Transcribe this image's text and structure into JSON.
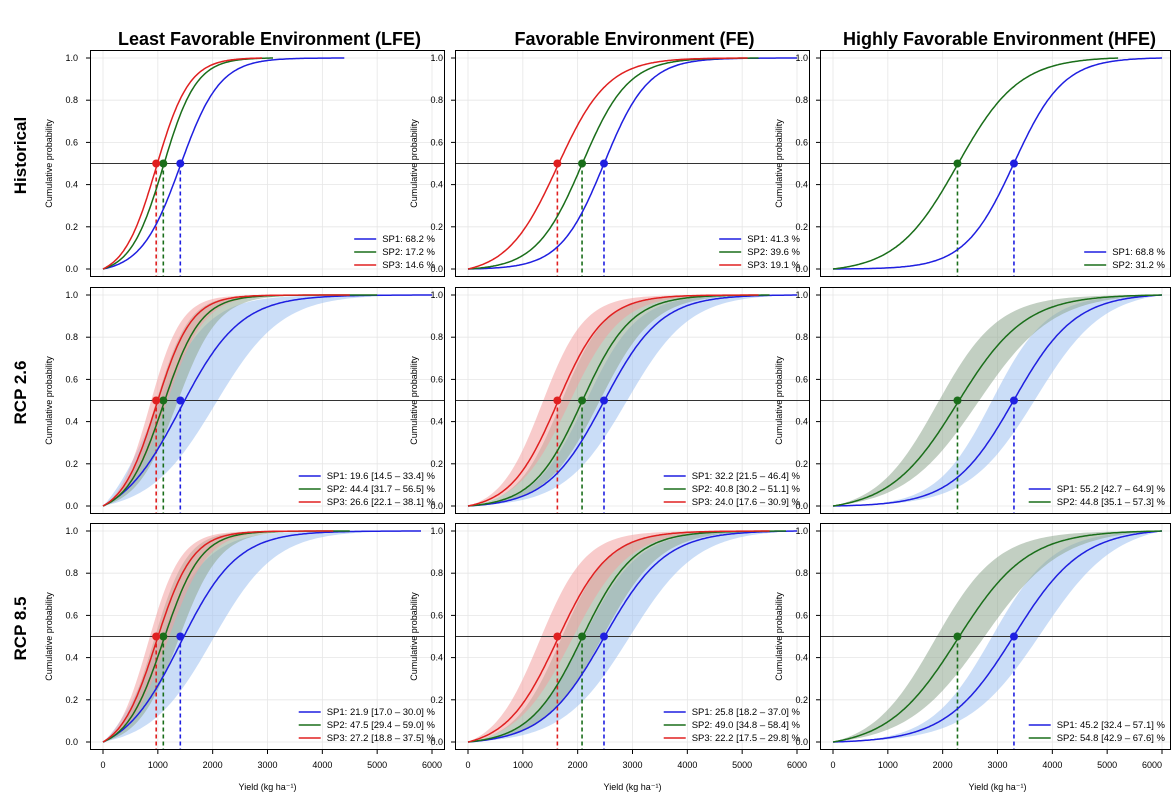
{
  "chart_data": {
    "type": "line",
    "colors": {
      "SP1": "#1f1fe0",
      "SP2": "#1a6e1a",
      "SP3": "#e02020"
    },
    "band_colors": {
      "SP1": "#9ec1f0",
      "SP2": "#8fa88f",
      "SP3": "#f2a0a0"
    },
    "columns": [
      {
        "title": "Least Favorable Environment (LFE)"
      },
      {
        "title": "Favorable Environment (FE)"
      },
      {
        "title": "Highly Favorable Environment (HFE)"
      }
    ],
    "rows": [
      {
        "title": "Historical"
      },
      {
        "title": "RCP 2.6"
      },
      {
        "title": "RCP 8.5"
      }
    ],
    "ylabel": "Cumulative probability",
    "xlabel": "Yield (kg ha⁻¹)",
    "xlim": [
      0,
      6000
    ],
    "ylim": [
      0,
      1
    ],
    "xticks": [
      0,
      1000,
      2000,
      3000,
      4000,
      5000,
      6000
    ],
    "yticks": [
      0.0,
      0.2,
      0.4,
      0.6,
      0.8,
      1.0
    ],
    "ytick_labels": [
      "0.0",
      "0.2",
      "0.4",
      "0.6",
      "0.8",
      "1.0"
    ],
    "reference_probability": 0.5,
    "panels": [
      {
        "row": 0,
        "col": 0,
        "series": [
          {
            "name": "SP1",
            "median": 1410,
            "spread": 360,
            "max": 4400,
            "band": false
          },
          {
            "name": "SP2",
            "median": 1100,
            "spread": 300,
            "max": 3100,
            "band": false
          },
          {
            "name": "SP3",
            "median": 970,
            "spread": 300,
            "max": 2900,
            "band": false
          }
        ],
        "legend": [
          "SP1: 68.2 %",
          "SP2: 17.2 %",
          "SP3: 14.6 %"
        ]
      },
      {
        "row": 0,
        "col": 1,
        "series": [
          {
            "name": "SP1",
            "median": 2480,
            "spread": 400,
            "max": 6000,
            "band": false
          },
          {
            "name": "SP2",
            "median": 2080,
            "spread": 420,
            "max": 5300,
            "band": false
          },
          {
            "name": "SP3",
            "median": 1630,
            "spread": 460,
            "max": 5100,
            "band": false
          }
        ],
        "legend": [
          "SP1: 41.3 %",
          "SP2: 39.6 %",
          "SP3: 19.1 %"
        ]
      },
      {
        "row": 0,
        "col": 2,
        "series": [
          {
            "name": "SP1",
            "median": 3300,
            "spread": 450,
            "max": 6000,
            "band": false
          },
          {
            "name": "SP2",
            "median": 2270,
            "spread": 560,
            "max": 5200,
            "band": false
          }
        ],
        "legend": [
          "SP1: 68.8 %",
          "SP2: 31.2 %"
        ]
      },
      {
        "row": 1,
        "col": 0,
        "series": [
          {
            "name": "SP1",
            "median": 1410,
            "spread": 550,
            "max": 6000,
            "band": true,
            "band_median_low": 900,
            "band_median_high": 2050
          },
          {
            "name": "SP2",
            "median": 1100,
            "spread": 340,
            "max": 5000,
            "band": true,
            "band_median_low": 950,
            "band_median_high": 1350
          },
          {
            "name": "SP3",
            "median": 970,
            "spread": 320,
            "max": 4500,
            "band": true,
            "band_median_low": 850,
            "band_median_high": 1150
          }
        ],
        "legend": [
          "SP1: 19.6 [14.5 – 33.4] %",
          "SP2: 44.4 [31.7 – 56.5] %",
          "SP3: 26.6 [22.1 – 38.1] %"
        ]
      },
      {
        "row": 1,
        "col": 1,
        "series": [
          {
            "name": "SP1",
            "median": 2480,
            "spread": 520,
            "max": 6000,
            "band": true,
            "band_median_low": 2150,
            "band_median_high": 2900
          },
          {
            "name": "SP2",
            "median": 2080,
            "spread": 450,
            "max": 5500,
            "band": true,
            "band_median_low": 1700,
            "band_median_high": 2400
          },
          {
            "name": "SP3",
            "median": 1630,
            "spread": 430,
            "max": 5300,
            "band": true,
            "band_median_low": 1350,
            "band_median_high": 1850
          }
        ],
        "legend": [
          "SP1: 32.2 [21.5 – 46.4] %",
          "SP2: 40.8 [30.2 – 51.1] %",
          "SP3: 24.0 [17.6 – 30.9] %"
        ]
      },
      {
        "row": 1,
        "col": 2,
        "series": [
          {
            "name": "SP1",
            "median": 3300,
            "spread": 560,
            "max": 6000,
            "band": true,
            "band_median_low": 2900,
            "band_median_high": 3700
          },
          {
            "name": "SP2",
            "median": 2270,
            "spread": 620,
            "max": 6000,
            "band": true,
            "band_median_low": 1900,
            "band_median_high": 2650
          }
        ],
        "legend": [
          "SP1: 55.2 [42.7 – 64.9] %",
          "SP2: 44.8 [35.1 – 57.3] %"
        ]
      },
      {
        "row": 2,
        "col": 0,
        "series": [
          {
            "name": "SP1",
            "median": 1410,
            "spread": 520,
            "max": 5800,
            "band": true,
            "band_median_low": 950,
            "band_median_high": 2000
          },
          {
            "name": "SP2",
            "median": 1100,
            "spread": 340,
            "max": 4500,
            "band": true,
            "band_median_low": 920,
            "band_median_high": 1380
          },
          {
            "name": "SP3",
            "median": 970,
            "spread": 330,
            "max": 4200,
            "band": true,
            "band_median_low": 820,
            "band_median_high": 1180
          }
        ],
        "legend": [
          "SP1: 21.9 [17.0 – 30.0] %",
          "SP2: 47.5 [29.4 – 59.0] %",
          "SP3: 27.2 [18.8 – 37.5] %"
        ]
      },
      {
        "row": 2,
        "col": 1,
        "series": [
          {
            "name": "SP1",
            "median": 2480,
            "spread": 560,
            "max": 6000,
            "band": true,
            "band_median_low": 2100,
            "band_median_high": 2950
          },
          {
            "name": "SP2",
            "median": 2080,
            "spread": 480,
            "max": 5800,
            "band": true,
            "band_median_low": 1700,
            "band_median_high": 2450
          },
          {
            "name": "SP3",
            "median": 1630,
            "spread": 470,
            "max": 5500,
            "band": true,
            "band_median_low": 1300,
            "band_median_high": 1900
          }
        ],
        "legend": [
          "SP1: 25.8 [18.2 – 37.0] %",
          "SP2: 49.0 [34.8 – 58.4] %",
          "SP3: 22.2 [17.5 – 29.8] %"
        ]
      },
      {
        "row": 2,
        "col": 2,
        "series": [
          {
            "name": "SP1",
            "median": 3300,
            "spread": 620,
            "max": 6000,
            "band": true,
            "band_median_low": 2900,
            "band_median_high": 3800
          },
          {
            "name": "SP2",
            "median": 2270,
            "spread": 640,
            "max": 6000,
            "band": true,
            "band_median_low": 1850,
            "band_median_high": 2750
          }
        ],
        "legend": [
          "SP1: 45.2 [32.4 – 57.1] %",
          "SP2: 54.8 [42.9 – 67.6] %"
        ]
      }
    ]
  }
}
